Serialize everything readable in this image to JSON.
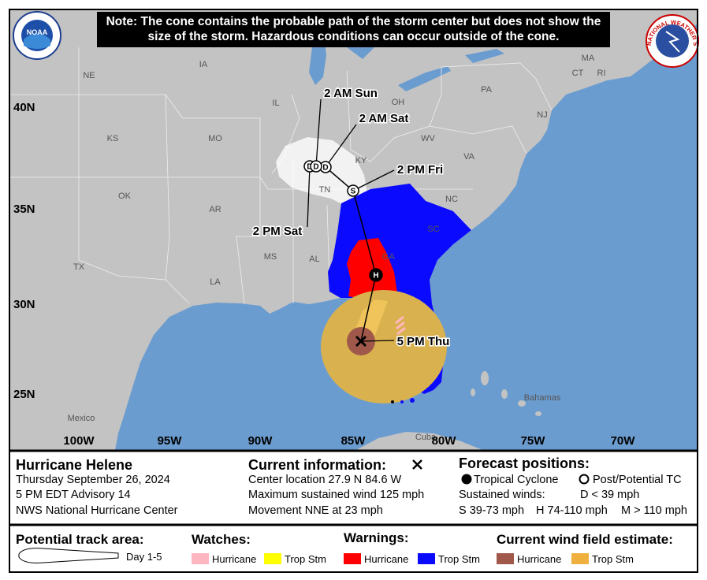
{
  "note": "Note: The cone contains the probable path of the storm center but does not show the size of the storm. Hazardous conditions can occur outside of the cone.",
  "logos": {
    "noaa": "NOAA",
    "nws": "NATIONAL WEATHER SERVICE"
  },
  "map": {
    "lat_labels": [
      "40N",
      "35N",
      "30N",
      "25N"
    ],
    "lon_labels": [
      "100W",
      "95W",
      "90W",
      "85W",
      "80W",
      "75W",
      "70W"
    ],
    "place_labels": [
      "NE",
      "IA",
      "IL",
      "OH",
      "PA",
      "MA",
      "CT",
      "RI",
      "NJ",
      "WV",
      "VA",
      "KY",
      "KS",
      "MO",
      "OK",
      "AR",
      "TN",
      "NC",
      "SC",
      "GA",
      "AL",
      "MS",
      "LA",
      "TX",
      "Mexico",
      "Bahamas",
      "Cuba"
    ]
  },
  "track_points": [
    {
      "time": "5 PM Thu"
    },
    {
      "symbol": "H"
    },
    {
      "time": "2 PM Fri",
      "symbol": "S"
    },
    {
      "time": "2 AM Sat",
      "symbol": "D"
    },
    {
      "time": "2 PM Sat",
      "symbol": "D"
    },
    {
      "time": "2 AM Sun",
      "symbol": "D"
    }
  ],
  "current": {
    "storm_name": "Hurricane Helene",
    "date": "Thursday September 26, 2024",
    "advisory": "5 PM EDT Advisory 14",
    "office": "NWS National Hurricane Center",
    "heading": "Current information:",
    "location": "Center location 27.9 N 84.6 W",
    "wind": "Maximum sustained wind 125 mph",
    "movement": "Movement NNE at 23 mph"
  },
  "forecast": {
    "heading": "Forecast positions:",
    "tropical": "Tropical Cyclone",
    "post": "Post/Potential TC",
    "winds_heading": "Sustained winds:",
    "d": "D < 39 mph",
    "s": "S 39-73 mph",
    "h": "H 74-110 mph",
    "m": "M > 110 mph"
  },
  "legend": {
    "track_heading": "Potential track area:",
    "day": "Day 1-5",
    "watches_heading": "Watches:",
    "watch_items": [
      "Hurricane",
      "Trop Stm"
    ],
    "warnings_heading": "Warnings:",
    "warning_items": [
      "Hurricane",
      "Trop Stm"
    ],
    "wind_heading": "Current wind field estimate:",
    "wind_items": [
      "Hurricane",
      "Trop Stm"
    ]
  }
}
